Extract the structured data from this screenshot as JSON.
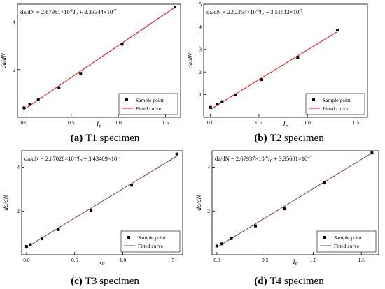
{
  "figure": {
    "panels": [
      {
        "panel_label": "(a)",
        "caption_text": "T1 specimen"
      },
      {
        "panel_label": "(b)",
        "caption_text": "T2 specimen"
      },
      {
        "panel_label": "(c)",
        "caption_text": "T3 specimen"
      },
      {
        "panel_label": "(d)",
        "caption_text": "T4 specimen"
      }
    ]
  },
  "chart_data": [
    {
      "type": "scatter",
      "equation": {
        "prefix": "da/dN",
        "coef": "2.67981",
        "exp1": "-6",
        "slope_var": "I",
        "slope_sub": "P",
        "intercept": "3.33344",
        "exp2": "-7"
      },
      "xlabel": {
        "text": "I",
        "sub": "P"
      },
      "ylabel": "da/dN",
      "xlim": [
        -0.07,
        1.66
      ],
      "ylim": [
        0,
        4.75
      ],
      "xticks": [
        0,
        0.5,
        1.0,
        1.5
      ],
      "xtick_labels": [
        "0.0",
        "0.5",
        "1.0",
        "1.5"
      ],
      "yticks": [
        2,
        4
      ],
      "ytick_labels": [
        "2",
        "4"
      ],
      "x": [
        0.0,
        0.06,
        0.15,
        0.37,
        0.6,
        1.04,
        1.6
      ],
      "y": [
        0.4,
        0.54,
        0.73,
        1.24,
        1.84,
        3.07,
        4.63
      ],
      "fit_line": {
        "x": [
          0.0,
          1.6
        ],
        "y": [
          0.33,
          4.62
        ]
      },
      "legend": {
        "position": "bottom-right",
        "entries": [
          "Sample point",
          "Fitted curve"
        ]
      },
      "colors": {
        "points": "#000000",
        "line": "#ff0000"
      }
    },
    {
      "type": "scatter",
      "equation": {
        "prefix": "da/dN",
        "coef": "2.62354",
        "exp1": "-6",
        "slope_var": "I",
        "slope_sub": "P",
        "intercept": "3.51512",
        "exp2": "-7"
      },
      "xlabel": {
        "text": "I",
        "sub": "P"
      },
      "ylabel": "da/dN",
      "xlim": [
        -0.07,
        1.62
      ],
      "ylim": [
        0,
        5.0
      ],
      "xticks": [
        0,
        0.5,
        1.0,
        1.5
      ],
      "xtick_labels": [
        "0.0",
        "0.5",
        "1.0",
        "1.5"
      ],
      "yticks": [
        1,
        2,
        3,
        4,
        5
      ],
      "ytick_labels": [
        "1",
        "2",
        "3",
        "4",
        "5"
      ],
      "x": [
        0.0,
        0.07,
        0.12,
        0.26,
        0.53,
        0.9,
        1.31
      ],
      "y": [
        0.44,
        0.58,
        0.69,
        0.99,
        1.66,
        2.65,
        3.86
      ],
      "fit_line": {
        "x": [
          0.0,
          1.31
        ],
        "y": [
          0.35,
          3.79
        ]
      },
      "legend": {
        "position": "bottom-right",
        "entries": [
          "Sample point",
          "Fitted curve"
        ]
      },
      "colors": {
        "points": "#000000",
        "line": "#ff0000"
      }
    },
    {
      "type": "scatter",
      "equation": {
        "prefix": "da/dN",
        "coef": "2.67028",
        "exp1": "-6",
        "slope_var": "I",
        "slope_sub": "P",
        "intercept": "3.43409",
        "exp2": "-7"
      },
      "xlabel": {
        "text": "I",
        "sub": "P"
      },
      "ylabel": "da/dN",
      "xlim": [
        -0.05,
        1.62
      ],
      "ylim": [
        0,
        4.75
      ],
      "xticks": [
        0,
        0.5,
        1.0,
        1.5
      ],
      "xtick_labels": [
        "0.0",
        "0.5",
        "1.0",
        "1.5"
      ],
      "yticks": [
        2,
        4
      ],
      "ytick_labels": [
        "2",
        "4"
      ],
      "x": [
        0.0,
        0.04,
        0.16,
        0.33,
        0.67,
        1.09,
        1.56
      ],
      "y": [
        0.38,
        0.46,
        0.73,
        1.15,
        2.03,
        3.18,
        4.6
      ],
      "fit_line": {
        "x": [
          0.0,
          1.56
        ],
        "y": [
          0.34,
          4.51
        ]
      },
      "legend": {
        "position": "bottom-right",
        "entries": [
          "Sample point",
          "Fitted curve"
        ]
      },
      "colors": {
        "points": "#000000",
        "line": "#8b3a3a"
      }
    },
    {
      "type": "scatter",
      "equation": {
        "prefix": "da/dN",
        "coef": "2.67937",
        "exp1": "-6",
        "slope_var": "I",
        "slope_sub": "P",
        "intercept": "3.35601",
        "exp2": "-7"
      },
      "xlabel": {
        "text": "I",
        "sub": "P"
      },
      "ylabel": "da/dN",
      "xlim": [
        -0.05,
        1.68
      ],
      "ylim": [
        0,
        4.75
      ],
      "xticks": [
        0,
        0.5,
        1.0,
        1.5
      ],
      "xtick_labels": [
        "0.0",
        "0.5",
        "1.0",
        "1.5"
      ],
      "yticks": [
        2,
        4
      ],
      "ytick_labels": [
        "2",
        "4"
      ],
      "x": [
        0.0,
        0.05,
        0.15,
        0.4,
        0.7,
        1.12,
        1.61
      ],
      "y": [
        0.4,
        0.5,
        0.74,
        1.32,
        2.1,
        3.28,
        4.65
      ],
      "fit_line": {
        "x": [
          0.0,
          1.61
        ],
        "y": [
          0.34,
          4.65
        ]
      },
      "legend": {
        "position": "bottom-right",
        "entries": [
          "Sample point",
          "Fitted curve"
        ]
      },
      "colors": {
        "points": "#000000",
        "line": "#8b3a3a"
      }
    }
  ]
}
